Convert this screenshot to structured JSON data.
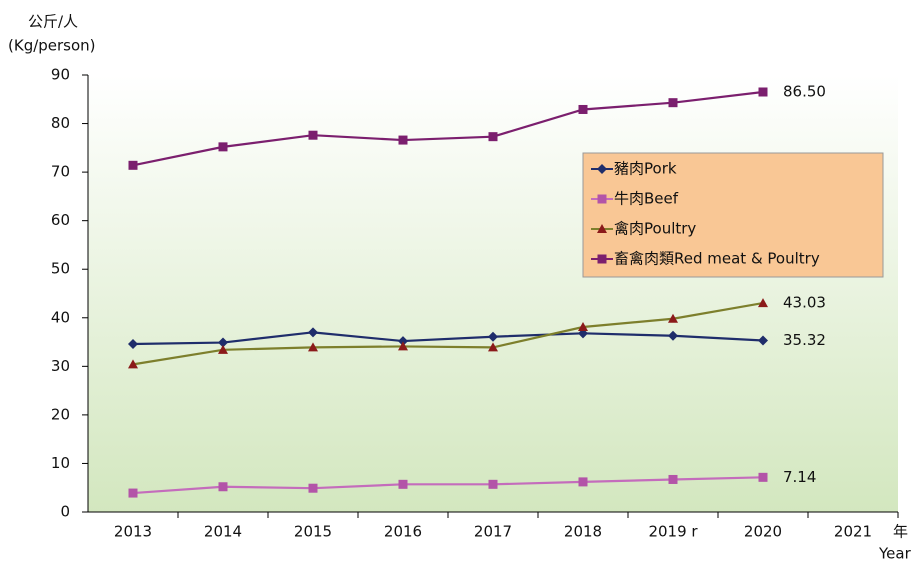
{
  "chart_data": {
    "type": "line",
    "y_label_zh": "公斤/人",
    "y_label": "(Kg/person)",
    "x_label_zh": "年",
    "x_label": "Year",
    "categories": [
      "2013",
      "2014",
      "2015",
      "2016",
      "2017",
      "2018",
      "2019 r",
      "2020",
      "2021"
    ],
    "series": [
      {
        "name": "豬肉Pork",
        "color": "#1f2d6b",
        "marker_color": "#1f2d6b",
        "marker": "diamond",
        "values": [
          34.6,
          34.9,
          37.0,
          35.2,
          36.1,
          36.8,
          36.3,
          35.32,
          null
        ],
        "value_labels": [
          null,
          null,
          null,
          null,
          null,
          null,
          null,
          "35.32",
          null
        ]
      },
      {
        "name": "牛肉Beef",
        "color": "#c46cbc",
        "marker_color": "#b354a8",
        "marker": "square",
        "values": [
          3.9,
          5.2,
          4.9,
          5.7,
          5.7,
          6.2,
          6.7,
          7.14,
          null
        ],
        "value_labels": [
          null,
          null,
          null,
          null,
          null,
          null,
          null,
          "7.14",
          null
        ]
      },
      {
        "name": "禽肉Poultry",
        "color": "#7d7f2c",
        "marker_color": "#8b1a1a",
        "marker": "triangle",
        "values": [
          30.4,
          33.4,
          33.9,
          34.1,
          33.9,
          38.1,
          39.8,
          43.03,
          null
        ],
        "value_labels": [
          null,
          null,
          null,
          null,
          null,
          null,
          null,
          "43.03",
          null
        ]
      },
      {
        "name": "畜禽肉類Red meat & Poultry",
        "color": "#7b1f6e",
        "marker_color": "#7b1f6e",
        "marker": "square",
        "values": [
          71.4,
          75.2,
          77.6,
          76.6,
          77.3,
          82.9,
          84.3,
          86.5,
          null
        ],
        "value_labels": [
          null,
          null,
          null,
          null,
          null,
          null,
          null,
          "86.50",
          null
        ]
      }
    ],
    "ylim": [
      0,
      90
    ],
    "yticks": [
      0,
      10,
      20,
      30,
      40,
      50,
      60,
      70,
      80,
      90
    ],
    "legend_position": "right",
    "legend_color": "#f9c795"
  }
}
